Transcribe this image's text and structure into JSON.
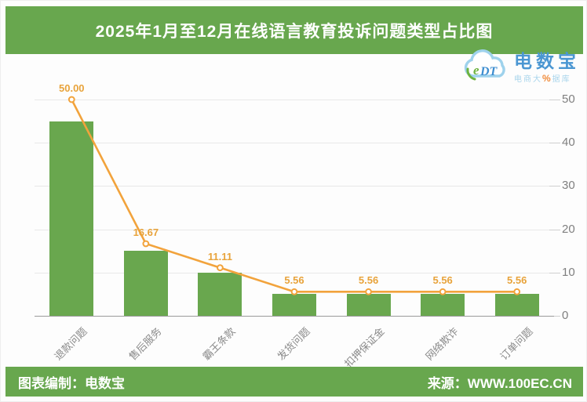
{
  "title": "2025年1月至12月在线语言教育投诉问题类型占比图",
  "logo": {
    "abbr": "eDT",
    "name": "电数宝",
    "subtitle_prefix": "电商大",
    "subtitle_percent": "%",
    "subtitle_suffix": "据库"
  },
  "chart_data": {
    "type": "bar",
    "title": "2025年1月至12月在线语言教育投诉问题类型占比图",
    "categories": [
      "退款问题",
      "售后服务",
      "霸王条款",
      "发货问题",
      "扣押保证金",
      "网络欺诈",
      "订单问题"
    ],
    "values": [
      50.0,
      16.67,
      11.11,
      5.56,
      5.56,
      5.56,
      5.56
    ],
    "data_labels": [
      "50.00",
      "16.67",
      "11.11",
      "5.56",
      "5.56",
      "5.56",
      "5.56"
    ],
    "unit": "%",
    "xlabel": "",
    "ylabel": "",
    "ylim": [
      0,
      50
    ],
    "right_axis_ticks": [
      0,
      10,
      20,
      30,
      40,
      50
    ],
    "grid": true,
    "legend_position": "none",
    "line_overlay_on_bars": true,
    "bar_height_ratio_vs_line": 0.9
  },
  "footer": {
    "left": "图表编制：电数宝",
    "right": "来源：WWW.100EC.CN"
  },
  "colors": {
    "brand_green": "#68a74e",
    "bar_green": "#69a74e",
    "line_orange": "#f2a33c",
    "data_label_orange": "#e8a33b",
    "axis_text_gray": "#7f7f7f",
    "gridline_gray": "#e8e8e8",
    "logo_blue": "#4a96d2",
    "logo_cloud_blue": "#9ed2ec"
  }
}
